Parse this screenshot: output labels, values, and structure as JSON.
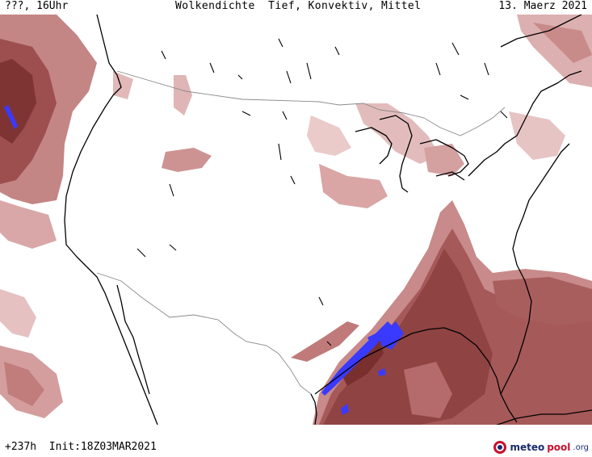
{
  "header": {
    "left": "???, 16Uhr",
    "title": "Wolkendichte  Tief, Konvektiv, Mittel",
    "date": "13. Maerz 2021"
  },
  "footer": {
    "run": "+237h  Init:18Z03MAR2021"
  },
  "brand": {
    "meteo": "meteo",
    "pool": "pool",
    "tld": ".org",
    "colors": {
      "navy": "#1a2a6c",
      "red": "#c8102e"
    }
  },
  "map": {
    "region": "United States",
    "colors": {
      "cloud_light": "#e9c6c6",
      "cloud_mid": "#cf8e8e",
      "cloud_dark": "#a75a5a",
      "cloud_darkest": "#7f3434",
      "convective": "#3a3aff",
      "coast": "#000000",
      "border": "#888888"
    }
  }
}
